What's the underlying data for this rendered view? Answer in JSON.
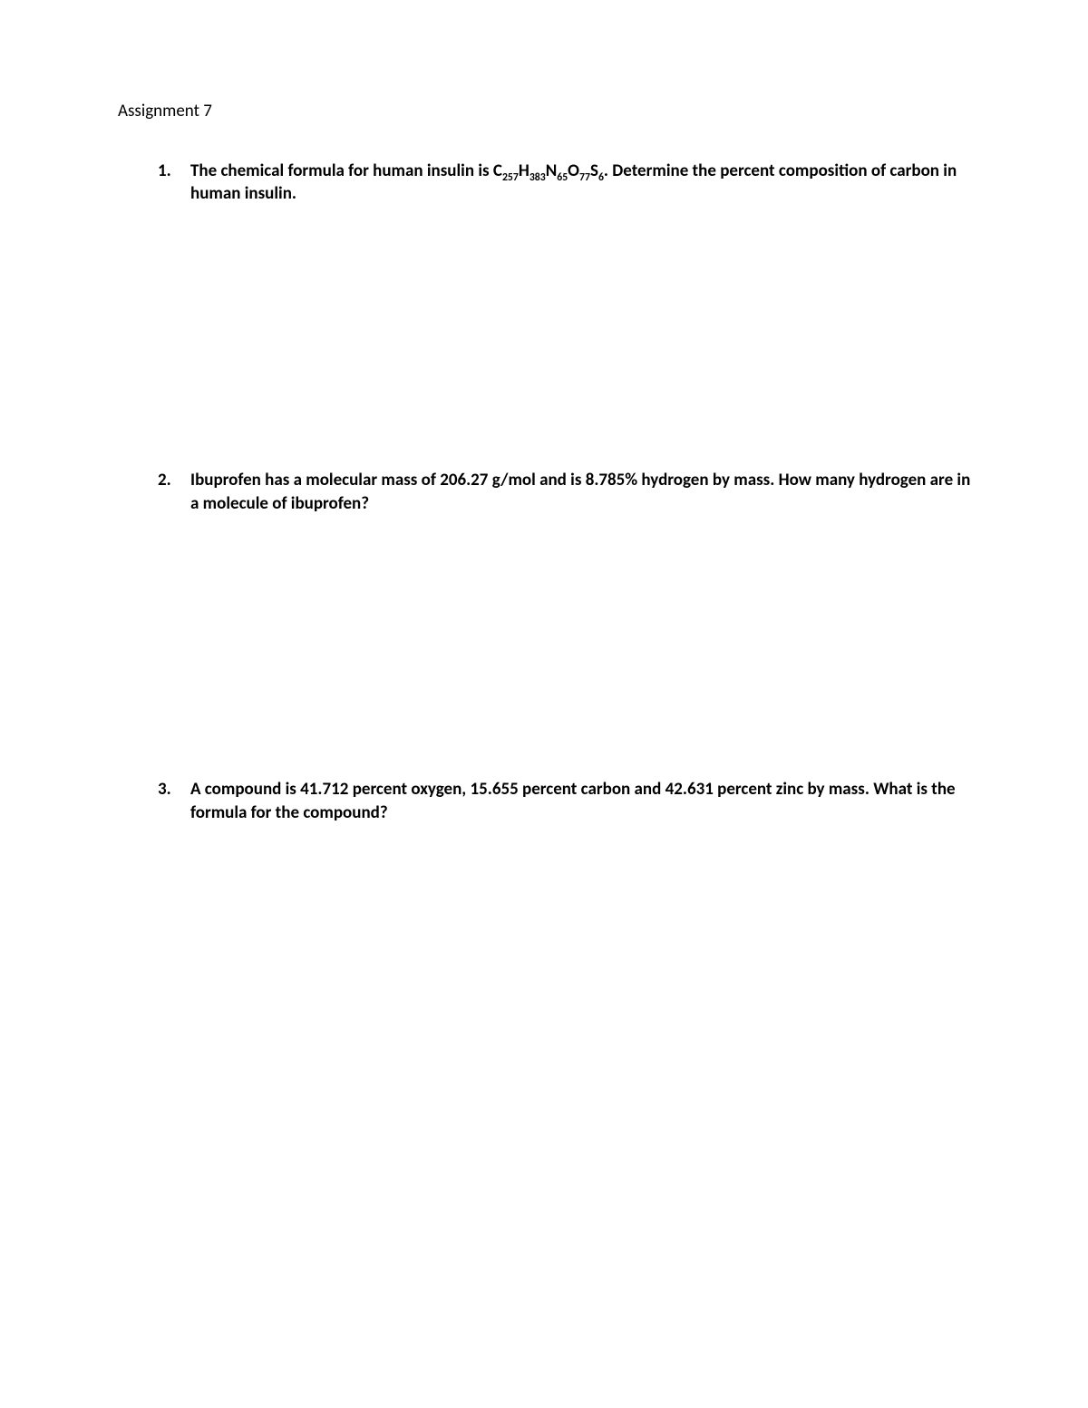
{
  "page": {
    "background_color": "#ffffff",
    "text_color": "#000000",
    "font_family": "Calibri",
    "title_fontsize": 19,
    "body_fontsize": 19,
    "body_fontweight": 700
  },
  "title": "Assignment 7",
  "questions": [
    {
      "number": "1.",
      "text_before_formula": "The chemical formula for human insulin is ",
      "formula": {
        "elements": [
          "C",
          "H",
          "N",
          "O",
          "S"
        ],
        "subscripts": [
          "257",
          "383",
          "65",
          "77",
          "6"
        ]
      },
      "text_after_formula": ".  Determine the percent composition of carbon in human insulin."
    },
    {
      "number": "2.",
      "text": "Ibuprofen has a molecular mass of 206.27 g/mol and is 8.785% hydrogen by mass.  How many hydrogen are in a molecule of ibuprofen?"
    },
    {
      "number": "3.",
      "text": "A compound is 41.712 percent oxygen, 15.655 percent carbon and 42.631  percent zinc by mass.  What is the formula for the compound?"
    }
  ]
}
